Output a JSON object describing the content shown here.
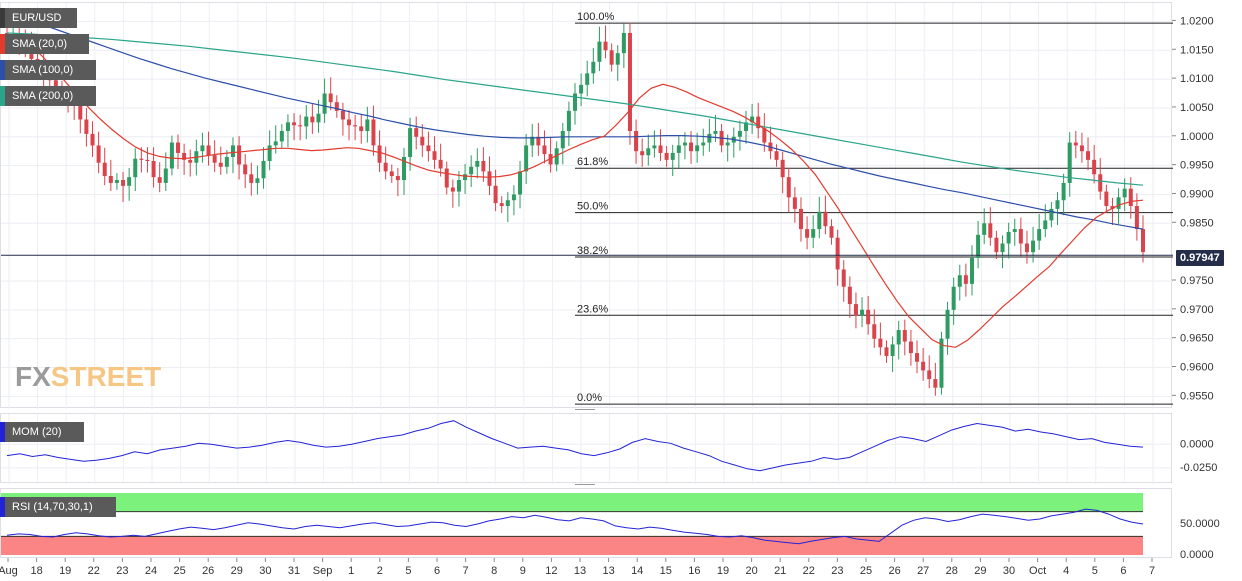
{
  "chart_data": [
    {
      "type": "candlestick",
      "title": "EUR/USD",
      "indicators": [
        {
          "name": "SMA (20,0)",
          "color": "#e23b2e"
        },
        {
          "name": "SMA (100,0)",
          "color": "#2c4fa8"
        },
        {
          "name": "SMA (200,0)",
          "color": "#2aa58a"
        }
      ],
      "x_tick_labels": [
        "Aug",
        "18",
        "19",
        "22",
        "23",
        "24",
        "25",
        "26",
        "29",
        "30",
        "31",
        "Sep",
        "1",
        "2",
        "5",
        "6",
        "7",
        "8",
        "9",
        "12",
        "13",
        "13",
        "14",
        "15",
        "16",
        "19",
        "20",
        "21",
        "22",
        "23",
        "25",
        "26",
        "27",
        "28",
        "29",
        "30",
        "Oct",
        "4",
        "5",
        "6",
        "7"
      ],
      "y_tick_labels": [
        "1.0200",
        "1.0150",
        "1.0100",
        "1.0050",
        "1.0000",
        "0.9950",
        "0.9900",
        "0.9850",
        "0.9750",
        "0.9700",
        "0.9650",
        "0.9600",
        "0.9550"
      ],
      "ylim": [
        0.9535,
        1.0225
      ],
      "current_price": "0.97947",
      "current_value": 0.97947,
      "fibonacci": [
        {
          "label": "100.0%",
          "value": 1.0197
        },
        {
          "label": "61.8%",
          "value": 0.99455
        },
        {
          "label": "50.0%",
          "value": 0.98685
        },
        {
          "label": "38.2%",
          "value": 0.97915
        },
        {
          "label": "23.6%",
          "value": 0.96905
        },
        {
          "label": "0.0%",
          "value": 0.95365
        }
      ],
      "close": [
        1.0175,
        1.0178,
        1.0168,
        1.0162,
        1.0135,
        1.012,
        1.0105,
        1.0098,
        1.0085,
        1.0075,
        1.007,
        1.0055,
        1.003,
        1.0005,
        0.9985,
        0.9955,
        0.9932,
        0.992,
        0.9925,
        0.9915,
        0.993,
        0.9962,
        0.996,
        0.9958,
        0.993,
        0.992,
        0.9945,
        0.999,
        0.9972,
        0.996,
        0.9955,
        0.9975,
        0.9985,
        0.9968,
        0.9955,
        0.9948,
        0.9965,
        0.9985,
        0.9952,
        0.9935,
        0.992,
        0.9928,
        0.9958,
        0.9985,
        0.9992,
        1.001,
        1.0025,
        1.002,
        1.0018,
        1.0035,
        1.0025,
        1.004,
        1.0075,
        1.006,
        1.0045,
        1.003,
        1.002,
        1.0018,
        1.001,
        1.003,
        0.9985,
        0.9955,
        0.994,
        0.9932,
        0.9925,
        0.9965,
        1.0015,
        1.0,
        0.9985,
        0.9975,
        0.996,
        0.9945,
        0.9912,
        0.9905,
        0.9925,
        0.9935,
        0.9948,
        0.9958,
        0.994,
        0.9915,
        0.9885,
        0.988,
        0.989,
        0.99,
        0.994,
        0.9985,
        1.0,
        0.9985,
        0.997,
        0.9952,
        0.998,
        1.001,
        1.0045,
        1.0075,
        1.009,
        1.011,
        1.013,
        1.0165,
        1.015,
        1.0125,
        1.0145,
        1.018,
        1.001,
        0.9975,
        0.9968,
        0.998,
        0.9985,
        0.9972,
        0.996,
        0.9972,
        0.9985,
        0.999,
        0.9975,
        0.9985,
        0.999,
        1.0005,
        1.001,
        0.9985,
        0.999,
        1.0,
        1.001,
        1.0025,
        1.0035,
        1.0015,
        0.999,
        0.9975,
        0.996,
        0.993,
        0.9895,
        0.9875,
        0.984,
        0.9825,
        0.984,
        0.987,
        0.9845,
        0.9825,
        0.977,
        0.974,
        0.971,
        0.969,
        0.97,
        0.9675,
        0.965,
        0.9635,
        0.962,
        0.964,
        0.9665,
        0.9645,
        0.9625,
        0.961,
        0.9595,
        0.958,
        0.9565,
        0.965,
        0.97,
        0.974,
        0.976,
        0.9745,
        0.979,
        0.983,
        0.985,
        0.9825,
        0.98,
        0.9815,
        0.9835,
        0.984,
        0.9815,
        0.98,
        0.982,
        0.984,
        0.9855,
        0.9875,
        0.989,
        0.992,
        0.999,
        0.9985,
        0.9975,
        0.996,
        0.9935,
        0.9905,
        0.988,
        0.9875,
        0.9895,
        0.991,
        0.988,
        0.984,
        0.98
      ],
      "sma20": [
        1.0178,
        1.0172,
        1.0158,
        1.014,
        1.0118,
        1.0095,
        1.0072,
        1.005,
        1.003,
        1.0012,
        0.9996,
        0.9982,
        0.9972,
        0.9966,
        0.9963,
        0.9962,
        0.9964,
        0.9967,
        0.997,
        0.9972,
        0.9974,
        0.9976,
        0.9978,
        0.998,
        0.998,
        0.9978,
        0.9976,
        0.9977,
        0.9979,
        0.9981,
        0.998,
        0.9976,
        0.9972,
        0.9965,
        0.9957,
        0.9949,
        0.9942,
        0.9938,
        0.9935,
        0.9932,
        0.9931,
        0.993,
        0.9931,
        0.9934,
        0.994,
        0.9948,
        0.9958,
        0.9968,
        0.9978,
        0.9987,
        0.9995,
        1.0001,
        1.002,
        1.0042,
        1.0067,
        1.0084,
        1.0091,
        1.0086,
        1.0078,
        1.0068,
        1.006,
        1.0052,
        1.0044,
        1.0034,
        1.0022,
        1.001,
        0.9995,
        0.9978,
        0.9958,
        0.9935,
        0.9905,
        0.9875,
        0.9842,
        0.981,
        0.9777,
        0.9745,
        0.9715,
        0.9688,
        0.9668,
        0.9648,
        0.9638,
        0.9635,
        0.9647,
        0.9665,
        0.9685,
        0.9705,
        0.9722,
        0.974,
        0.9758,
        0.9775,
        0.9798,
        0.982,
        0.9842,
        0.986,
        0.9872,
        0.9882,
        0.9888,
        0.989
      ],
      "sma100": [
        1.0215,
        1.0206,
        1.0196,
        1.0186,
        1.0176,
        1.0166,
        1.0156,
        1.0146,
        1.0136,
        1.0127,
        1.0118,
        1.011,
        1.0102,
        1.0095,
        1.0088,
        1.0081,
        1.0074,
        1.0067,
        1.0061,
        1.0055,
        1.0049,
        1.0042,
        1.0036,
        1.0029,
        1.0023,
        1.0017,
        1.0012,
        1.0008,
        1.0004,
        1.0001,
        0.9999,
        0.9998,
        0.9998,
        0.9999,
        1.0,
        1.0,
        1.0,
        1.0,
        1.0,
        1.0001,
        1.0002,
        1.0002,
        1.0001,
        0.9999,
        0.9996,
        0.9991,
        0.9985,
        0.9977,
        0.9969,
        0.9961,
        0.9953,
        0.9946,
        0.9939,
        0.9932,
        0.9926,
        0.992,
        0.9914,
        0.9908,
        0.9903,
        0.9897,
        0.9891,
        0.9885,
        0.9879,
        0.9873,
        0.9867,
        0.9861,
        0.9856,
        0.985,
        0.9845,
        0.984
      ],
      "sma200": [
        1.018,
        1.0178,
        1.0175,
        1.0172,
        1.0169,
        1.0165,
        1.0161,
        1.0157,
        1.0152,
        1.0147,
        1.0142,
        1.0137,
        1.0131,
        1.0125,
        1.0119,
        1.0113,
        1.0106,
        1.0099,
        1.0093,
        1.0087,
        1.0081,
        1.0075,
        1.0069,
        1.0063,
        1.0057,
        1.005,
        1.0043,
        1.0036,
        1.0028,
        1.002,
        1.0012,
        1.0004,
        0.9996,
        0.9988,
        0.998,
        0.9972,
        0.9964,
        0.9956,
        0.9949,
        0.9942,
        0.9936,
        0.993,
        0.9925,
        0.992,
        0.9916
      ]
    },
    {
      "type": "line",
      "title": "MOM (20)",
      "y_tick_labels": [
        "0.0000",
        "-0.0250"
      ],
      "ylim": [
        -0.04,
        0.03
      ],
      "series": [
        {
          "name": "MOM (20)",
          "color": "#2323d6",
          "values": [
            -0.012,
            -0.01,
            -0.013,
            -0.011,
            -0.014,
            -0.016,
            -0.018,
            -0.017,
            -0.015,
            -0.012,
            -0.008,
            -0.01,
            -0.006,
            -0.004,
            -0.002,
            0.001,
            0.0,
            -0.002,
            -0.004,
            -0.003,
            -0.001,
            0.002,
            0.004,
            0.002,
            -0.001,
            -0.003,
            -0.002,
            0.0,
            0.003,
            0.006,
            0.008,
            0.01,
            0.014,
            0.017,
            0.022,
            0.025,
            0.018,
            0.012,
            0.006,
            0.001,
            -0.004,
            -0.003,
            -0.002,
            -0.004,
            -0.006,
            -0.01,
            -0.012,
            -0.009,
            -0.005,
            0.002,
            0.006,
            0.003,
            0.001,
            -0.004,
            -0.008,
            -0.012,
            -0.018,
            -0.022,
            -0.026,
            -0.028,
            -0.025,
            -0.022,
            -0.02,
            -0.018,
            -0.014,
            -0.016,
            -0.014,
            -0.008,
            -0.002,
            0.004,
            0.008,
            0.006,
            0.003,
            0.009,
            0.015,
            0.019,
            0.022,
            0.02,
            0.018,
            0.014,
            0.016,
            0.013,
            0.011,
            0.008,
            0.005,
            0.006,
            0.002,
            0.0,
            -0.002,
            -0.003
          ]
        }
      ]
    },
    {
      "type": "line",
      "title": "RSI (14,70,30,1)",
      "y_tick_labels": [
        "50.0000",
        "0.0000"
      ],
      "ylim": [
        0,
        100
      ],
      "overbought": 70,
      "oversold": 30,
      "series": [
        {
          "name": "RSI",
          "color": "#2323d6",
          "values": [
            32,
            34,
            33,
            30,
            29,
            33,
            36,
            34,
            31,
            29,
            30,
            32,
            30,
            34,
            38,
            42,
            45,
            43,
            41,
            44,
            48,
            52,
            50,
            47,
            44,
            42,
            46,
            48,
            46,
            44,
            47,
            50,
            52,
            49,
            46,
            47,
            50,
            53,
            52,
            48,
            46,
            50,
            55,
            58,
            62,
            60,
            64,
            61,
            57,
            55,
            60,
            58,
            55,
            47,
            44,
            42,
            45,
            43,
            40,
            37,
            35,
            33,
            30,
            29,
            31,
            28,
            24,
            22,
            20,
            18,
            22,
            25,
            28,
            30,
            26,
            24,
            22,
            35,
            48,
            56,
            60,
            58,
            54,
            57,
            62,
            66,
            64,
            62,
            59,
            56,
            58,
            63,
            66,
            69,
            74,
            72,
            66,
            58,
            53,
            50
          ]
        }
      ]
    }
  ]
}
